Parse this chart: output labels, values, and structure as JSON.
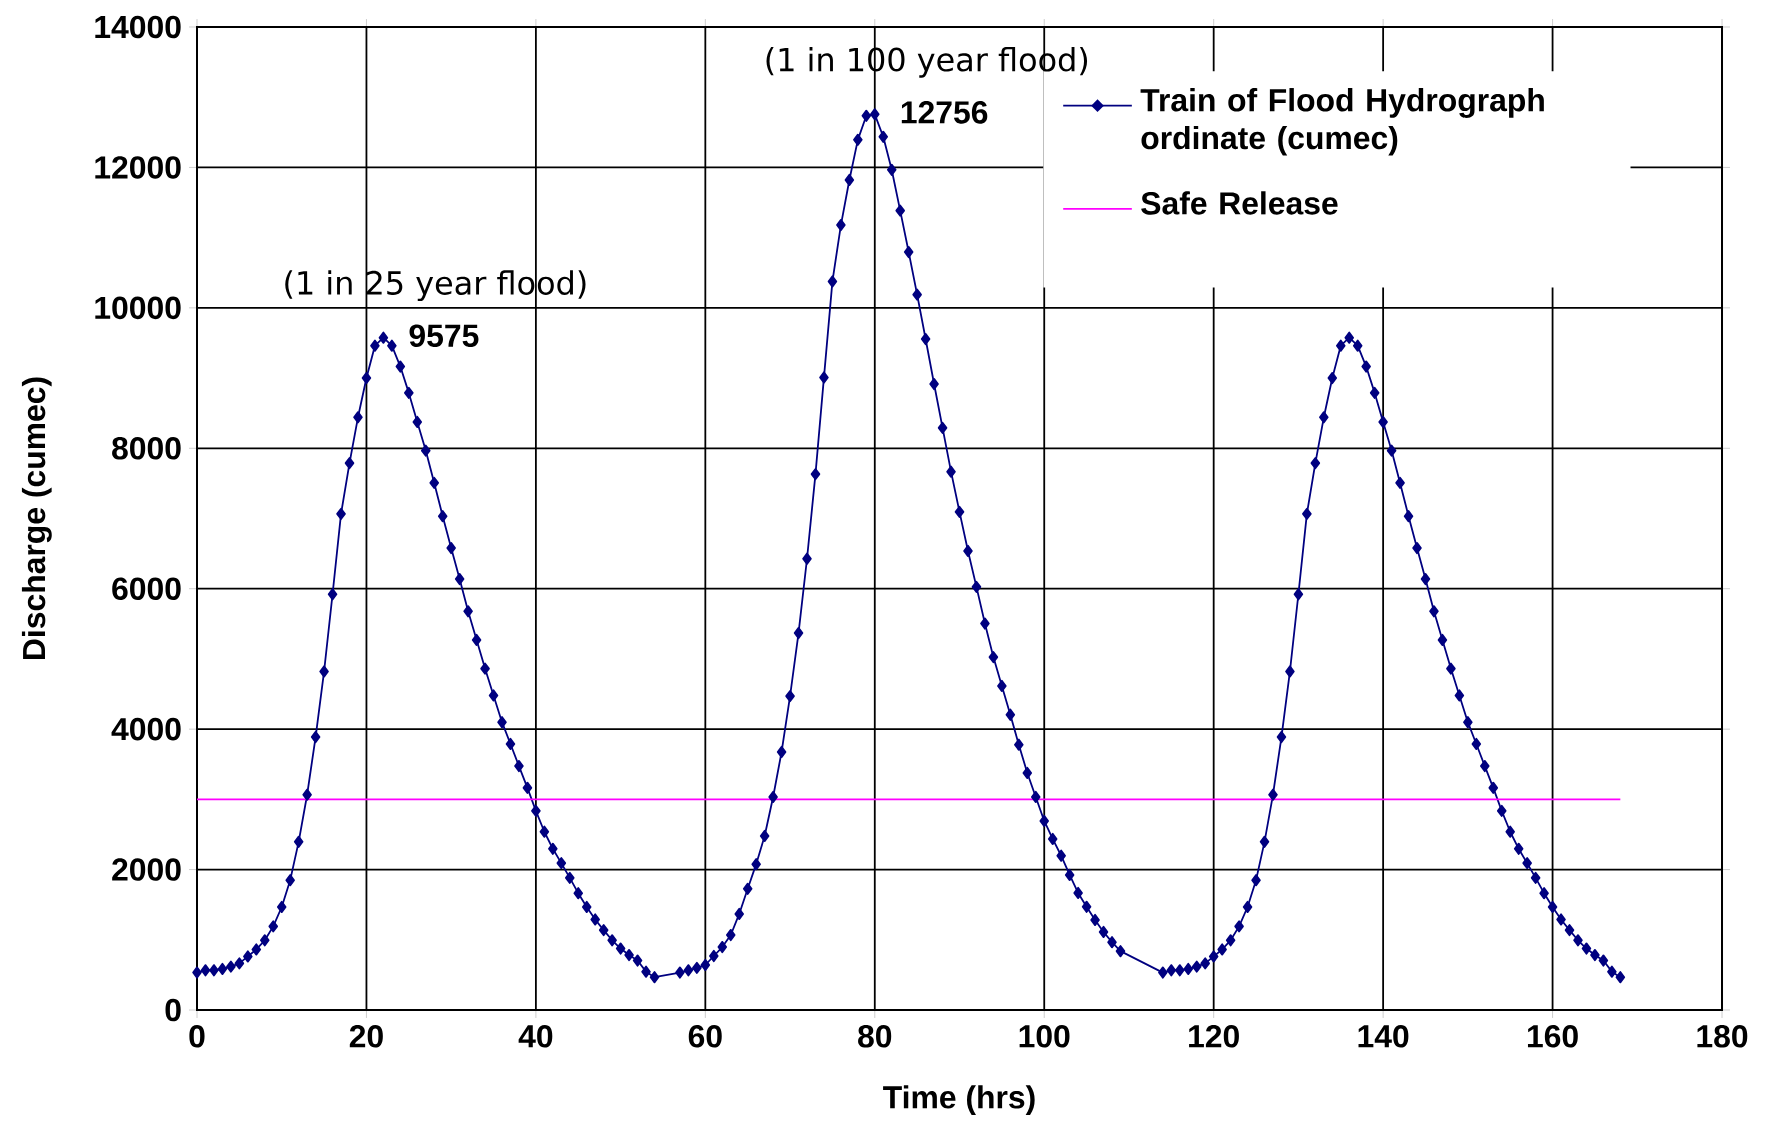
{
  "chart_data": {
    "type": "line",
    "xlabel": "Time (hrs)",
    "ylabel": "Discharge (cumec)",
    "xlim": [
      0,
      180
    ],
    "xticks": [
      0,
      20,
      40,
      60,
      80,
      100,
      120,
      140,
      160,
      180
    ],
    "ylim": [
      0,
      14000
    ],
    "yticks": [
      0,
      2000,
      4000,
      6000,
      8000,
      10000,
      12000,
      14000
    ],
    "grid": true,
    "legend": "top right",
    "annotations": [
      {
        "text": "(1 in 25 year flood)",
        "x": 22,
        "y": 9575
      },
      {
        "text": "(1 in 100 year flood)",
        "x": 80,
        "y": 12756
      }
    ],
    "series": [
      {
        "name": "Train of Flood Hydrograph ordinate (cumec)",
        "color": "#000080",
        "marker": "diamond",
        "x": [
          0,
          1,
          2,
          3,
          4,
          5,
          6,
          7,
          8,
          9,
          10,
          11,
          12,
          13,
          14,
          15,
          16,
          17,
          18,
          19,
          20,
          21,
          22,
          23,
          24,
          25,
          26,
          27,
          28,
          29,
          30,
          31,
          32,
          33,
          34,
          35,
          36,
          37,
          38,
          39,
          40,
          41,
          42,
          43,
          44,
          45,
          46,
          47,
          48,
          49,
          50,
          51,
          52,
          53,
          54,
          57,
          58,
          59,
          60,
          61,
          62,
          63,
          64,
          65,
          66,
          67,
          68,
          69,
          70,
          71,
          72,
          73,
          74,
          75,
          76,
          77,
          78,
          79,
          80,
          81,
          82,
          83,
          84,
          85,
          86,
          87,
          88,
          89,
          90,
          91,
          92,
          93,
          94,
          95,
          96,
          97,
          98,
          99,
          100,
          101,
          102,
          103,
          104,
          105,
          106,
          107,
          108,
          109,
          114,
          115,
          116,
          117,
          118,
          119,
          120,
          121,
          122,
          123,
          124,
          125,
          126,
          127,
          128,
          129,
          130,
          131,
          132,
          133,
          134,
          135,
          136,
          137,
          138,
          139,
          140,
          141,
          142,
          143,
          144,
          145,
          146,
          147,
          148,
          149,
          150,
          151,
          152,
          153,
          154,
          155,
          156,
          157,
          158,
          159,
          160,
          161,
          162,
          163,
          164,
          165,
          166,
          167,
          168
        ],
        "values": [
          533,
          566,
          566,
          585,
          618,
          664,
          763,
          862,
          993,
          1191,
          1467,
          1849,
          2395,
          3066,
          3888,
          4822,
          5921,
          7066,
          7789,
          8441,
          9000,
          9461,
          9575,
          9461,
          9164,
          8789,
          8375,
          7967,
          7507,
          7033,
          6579,
          6138,
          5678,
          5270,
          4862,
          4480,
          4099,
          3789,
          3474,
          3164,
          2836,
          2539,
          2296,
          2092,
          1882,
          1664,
          1467,
          1289,
          1138,
          993,
          875,
          783,
          704,
          546,
          467,
          533,
          566,
          600,
          641,
          769,
          897,
          1068,
          1368,
          1726,
          2077,
          2479,
          3034,
          3675,
          4470,
          5368,
          6427,
          7632,
          9009,
          10376,
          11179,
          11821,
          12393,
          12735,
          12756,
          12436,
          11966,
          11385,
          10795,
          10188,
          9556,
          8915,
          8291,
          7667,
          7094,
          6538,
          6026,
          5504,
          5026,
          4615,
          4205,
          3778,
          3376,
          3034,
          2692,
          2436,
          2197,
          1923,
          1667,
          1470,
          1282,
          1111,
          966,
          838,
          533,
          566,
          566,
          585,
          618,
          664,
          763,
          862,
          993,
          1191,
          1467,
          1849,
          2395,
          3066,
          3888,
          4822,
          5921,
          7066,
          7789,
          8441,
          9000,
          9461,
          9575,
          9461,
          9164,
          8789,
          8375,
          7967,
          7507,
          7033,
          6579,
          6138,
          5678,
          5270,
          4862,
          4480,
          4099,
          3789,
          3474,
          3164,
          2836,
          2539,
          2296,
          2092,
          1882,
          1664,
          1467,
          1289,
          1138,
          993,
          875,
          783,
          704,
          546,
          467
        ],
        "value_labels": [
          null,
          null,
          null,
          null,
          null,
          null,
          null,
          null,
          null,
          null,
          null,
          null,
          null,
          null,
          null,
          null,
          null,
          null,
          null,
          null,
          null,
          null,
          "9575",
          null,
          null,
          null,
          null,
          null,
          null,
          null,
          null,
          null,
          null,
          null,
          null,
          null,
          null,
          null,
          null,
          null,
          null,
          null,
          null,
          null,
          null,
          null,
          null,
          null,
          null,
          null,
          null,
          null,
          null,
          null,
          null,
          null,
          null,
          null,
          null,
          null,
          null,
          null,
          null,
          null,
          null,
          null,
          null,
          null,
          null,
          null,
          null,
          null,
          null,
          null,
          null,
          null,
          null,
          null,
          "12756",
          null,
          null,
          null,
          null,
          null,
          null,
          null,
          null,
          null,
          null,
          null,
          null,
          null,
          null,
          null,
          null,
          null,
          null,
          null,
          null,
          null,
          null,
          null,
          null,
          null,
          null,
          null,
          null,
          null,
          null,
          null,
          null,
          null,
          null,
          null,
          null,
          null,
          null,
          null,
          null,
          null,
          null,
          null,
          null,
          null,
          null,
          null,
          null,
          null,
          null,
          null,
          null,
          null,
          null,
          null,
          null,
          null,
          null,
          null,
          null,
          null,
          null,
          null,
          null,
          null,
          null,
          null,
          null,
          null,
          null,
          null,
          null,
          null,
          null,
          null,
          null,
          null,
          null,
          null,
          null,
          null,
          null,
          null,
          null
        ]
      },
      {
        "name": "Safe Release",
        "color": "#ff00ff",
        "marker": "none",
        "x": [
          0,
          168
        ],
        "values": [
          3000,
          3000
        ]
      }
    ]
  }
}
